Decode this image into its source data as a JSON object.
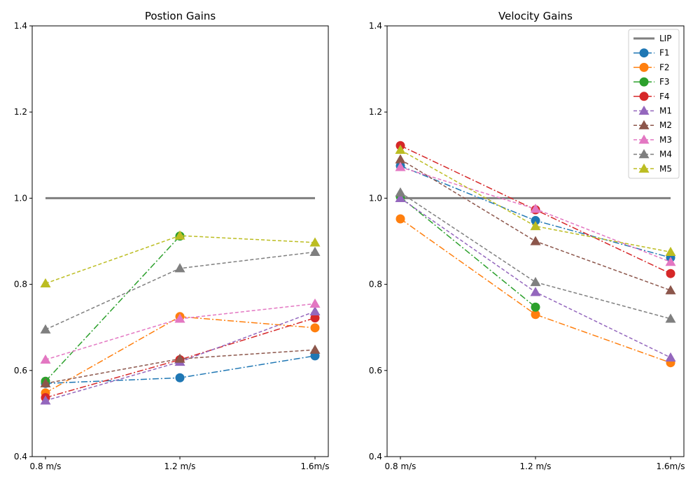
{
  "chart_data": [
    {
      "type": "line",
      "title": "Postion Gains",
      "categories": [
        "0.8 m/s",
        "1.2 m/s",
        "1.6m/s"
      ],
      "ylim": [
        0.4,
        1.4
      ],
      "yticks": [
        "0.4",
        "0.6",
        "0.8",
        "1.0",
        "1.2",
        "1.4"
      ],
      "grid": false,
      "reference": {
        "name": "LIP",
        "value": 1.0,
        "color": "#7f7f7f"
      },
      "series": [
        {
          "name": "F1",
          "values": [
            0.57,
            0.583,
            0.634
          ],
          "color": "#1f77b4",
          "marker": "circle",
          "dash": "dashdot"
        },
        {
          "name": "F2",
          "values": [
            0.548,
            0.725,
            0.699
          ],
          "color": "#ff7f0e",
          "marker": "circle",
          "dash": "dashdot"
        },
        {
          "name": "F3",
          "values": [
            0.575,
            0.912,
            null
          ],
          "color": "#2ca02c",
          "marker": "circle",
          "dash": "dashdot"
        },
        {
          "name": "F4",
          "values": [
            0.537,
            0.625,
            0.722
          ],
          "color": "#d62728",
          "marker": "circle",
          "dash": "dashdot"
        },
        {
          "name": "M1",
          "values": [
            0.53,
            0.62,
            0.737
          ],
          "color": "#9467bd",
          "marker": "triangle",
          "dash": "dashed"
        },
        {
          "name": "M2",
          "values": [
            0.57,
            0.627,
            0.648
          ],
          "color": "#8c564b",
          "marker": "triangle",
          "dash": "dashed"
        },
        {
          "name": "M3",
          "values": [
            0.625,
            0.72,
            0.755
          ],
          "color": "#e377c2",
          "marker": "triangle",
          "dash": "dashed"
        },
        {
          "name": "M4",
          "values": [
            0.695,
            0.837,
            0.875
          ],
          "color": "#7f7f7f",
          "marker": "triangle",
          "dash": "dashed"
        },
        {
          "name": "M5",
          "values": [
            0.802,
            0.913,
            0.897
          ],
          "color": "#bcbd22",
          "marker": "triangle",
          "dash": "dashed"
        }
      ]
    },
    {
      "type": "line",
      "title": "Velocity Gains",
      "categories": [
        "0.8 m/s",
        "1.2 m/s",
        "1.6m/s"
      ],
      "ylim": [
        0.4,
        1.4
      ],
      "yticks": [
        "0.4",
        "0.6",
        "0.8",
        "1.0",
        "1.2",
        "1.4"
      ],
      "grid": false,
      "legend": "top-right",
      "reference": {
        "name": "LIP",
        "value": 1.0,
        "color": "#7f7f7f"
      },
      "series": [
        {
          "name": "F1",
          "values": [
            1.075,
            0.948,
            0.862
          ],
          "color": "#1f77b4",
          "marker": "circle",
          "dash": "dashdot"
        },
        {
          "name": "F2",
          "values": [
            0.952,
            0.73,
            0.618
          ],
          "color": "#ff7f0e",
          "marker": "circle",
          "dash": "dashdot"
        },
        {
          "name": "F3",
          "values": [
            1.003,
            0.747,
            null
          ],
          "color": "#2ca02c",
          "marker": "circle",
          "dash": "dashdot"
        },
        {
          "name": "F4",
          "values": [
            1.122,
            0.973,
            0.825
          ],
          "color": "#d62728",
          "marker": "circle",
          "dash": "dashdot"
        },
        {
          "name": "M1",
          "values": [
            1.0,
            0.782,
            0.63
          ],
          "color": "#9467bd",
          "marker": "triangle",
          "dash": "dashed"
        },
        {
          "name": "M2",
          "values": [
            1.09,
            0.9,
            0.786
          ],
          "color": "#8c564b",
          "marker": "triangle",
          "dash": "dashed"
        },
        {
          "name": "M3",
          "values": [
            1.072,
            0.975,
            0.852
          ],
          "color": "#e377c2",
          "marker": "triangle",
          "dash": "dashed"
        },
        {
          "name": "M4",
          "values": [
            1.013,
            0.805,
            0.72
          ],
          "color": "#7f7f7f",
          "marker": "triangle",
          "dash": "dashed"
        },
        {
          "name": "M5",
          "values": [
            1.112,
            0.935,
            0.875
          ],
          "color": "#bcbd22",
          "marker": "triangle",
          "dash": "dashed"
        }
      ]
    }
  ]
}
